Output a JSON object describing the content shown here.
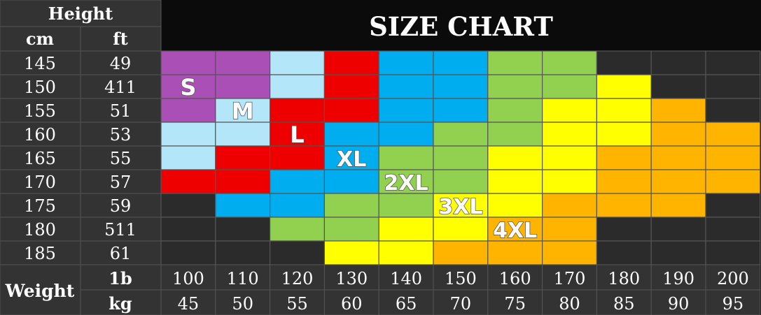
{
  "chart_data": {
    "type": "heatmap",
    "title": "SIZE CHART",
    "header": {
      "height": "Height",
      "cm": "cm",
      "ft": "ft",
      "weight": "Weight",
      "lb": "1b",
      "kg": "kg"
    },
    "rows": [
      {
        "cm": "145",
        "ft": "49"
      },
      {
        "cm": "150",
        "ft": "411"
      },
      {
        "cm": "155",
        "ft": "51"
      },
      {
        "cm": "160",
        "ft": "53"
      },
      {
        "cm": "165",
        "ft": "55"
      },
      {
        "cm": "170",
        "ft": "57"
      },
      {
        "cm": "175",
        "ft": "59"
      },
      {
        "cm": "180",
        "ft": "511"
      },
      {
        "cm": "185",
        "ft": "61"
      }
    ],
    "columns": [
      {
        "lb": "100",
        "kg": "45"
      },
      {
        "lb": "110",
        "kg": "50"
      },
      {
        "lb": "120",
        "kg": "55"
      },
      {
        "lb": "130",
        "kg": "60"
      },
      {
        "lb": "140",
        "kg": "65"
      },
      {
        "lb": "150",
        "kg": "70"
      },
      {
        "lb": "160",
        "kg": "75"
      },
      {
        "lb": "170",
        "kg": "80"
      },
      {
        "lb": "180",
        "kg": "85"
      },
      {
        "lb": "190",
        "kg": "90"
      },
      {
        "lb": "200",
        "kg": "95"
      }
    ],
    "sizes": [
      {
        "label": "S",
        "color": "#a94fb5"
      },
      {
        "label": "M",
        "color": "#b2e6f8"
      },
      {
        "label": "L",
        "color": "#ee0000"
      },
      {
        "label": "XL",
        "color": "#00adef"
      },
      {
        "label": "2XL",
        "color": "#92d050"
      },
      {
        "label": "3XL",
        "color": "#ffff00"
      },
      {
        "label": "4XL",
        "color": "#ffb400"
      }
    ],
    "empty_color": "#2b2b2b",
    "grid": [
      [
        0,
        0,
        1,
        2,
        3,
        3,
        4,
        4,
        -1,
        -1,
        -1
      ],
      [
        0,
        0,
        1,
        2,
        3,
        3,
        4,
        4,
        5,
        -1,
        -1
      ],
      [
        0,
        1,
        2,
        2,
        3,
        3,
        4,
        5,
        5,
        6,
        -1
      ],
      [
        1,
        1,
        2,
        3,
        3,
        4,
        4,
        5,
        5,
        6,
        6
      ],
      [
        1,
        2,
        2,
        3,
        4,
        4,
        5,
        5,
        6,
        6,
        6
      ],
      [
        2,
        2,
        3,
        3,
        4,
        4,
        5,
        5,
        6,
        6,
        6
      ],
      [
        -1,
        3,
        3,
        4,
        4,
        5,
        5,
        6,
        6,
        6,
        -1
      ],
      [
        -1,
        -1,
        4,
        4,
        5,
        5,
        6,
        6,
        -1,
        -1,
        -1
      ],
      [
        -1,
        -1,
        -1,
        5,
        5,
        6,
        6,
        6,
        -1,
        -1,
        -1
      ]
    ],
    "size_label_cells": [
      {
        "row": 1,
        "col": 0
      },
      {
        "row": 2,
        "col": 1
      },
      {
        "row": 3,
        "col": 2
      },
      {
        "row": 4,
        "col": 3
      },
      {
        "row": 5,
        "col": 4
      },
      {
        "row": 6,
        "col": 5
      },
      {
        "row": 7,
        "col": 6
      }
    ]
  }
}
